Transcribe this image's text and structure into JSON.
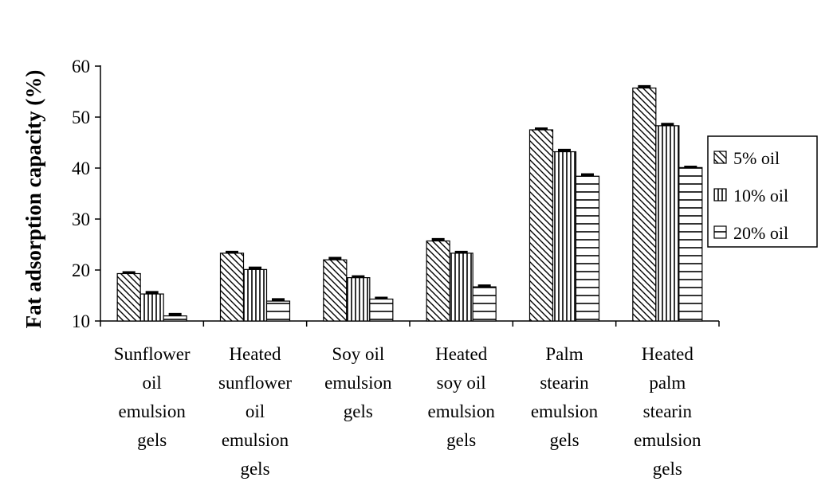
{
  "chart_data": {
    "type": "bar",
    "title": "",
    "xlabel": "",
    "ylabel": "Fat adsorption capacity (%)",
    "ylim": [
      10,
      60
    ],
    "yticks": [
      10,
      20,
      30,
      40,
      50,
      60
    ],
    "grid": false,
    "legend_position": "right",
    "categories": [
      "Sunflower oil emulsion gels",
      "Heated sunflower oil emulsion gels",
      "Soy oil emulsion gels",
      "Heated soy oil emulsion gels",
      "Palm stearin emulsion gels",
      "Heated palm stearin emulsion gels"
    ],
    "category_lines": [
      [
        "Sunflower",
        "oil",
        "emulsion",
        "gels"
      ],
      [
        "Heated",
        "sunflower",
        "oil",
        "emulsion",
        "gels"
      ],
      [
        "Soy oil",
        "emulsion",
        "gels"
      ],
      [
        "Heated",
        "soy oil",
        "emulsion",
        "gels"
      ],
      [
        "Palm",
        "stearin",
        "emulsion",
        "gels"
      ],
      [
        "Heated",
        "palm",
        "stearin",
        "emulsion",
        "gels"
      ]
    ],
    "series": [
      {
        "name": "5% oil",
        "pattern": "diagonal",
        "values": [
          19.3,
          23.3,
          22.0,
          25.7,
          47.5,
          55.7
        ],
        "errors": [
          0.2,
          0.2,
          0.3,
          0.3,
          0.2,
          0.3
        ]
      },
      {
        "name": "10% oil",
        "pattern": "vertical",
        "values": [
          15.3,
          20.1,
          18.5,
          23.3,
          43.2,
          48.3
        ],
        "errors": [
          0.3,
          0.3,
          0.2,
          0.2,
          0.3,
          0.3
        ]
      },
      {
        "name": "20% oil",
        "pattern": "horizontal",
        "values": [
          11.0,
          13.9,
          14.3,
          16.7,
          38.4,
          40.1
        ],
        "errors": [
          0.3,
          0.3,
          0.2,
          0.2,
          0.3,
          0.1
        ]
      }
    ]
  }
}
